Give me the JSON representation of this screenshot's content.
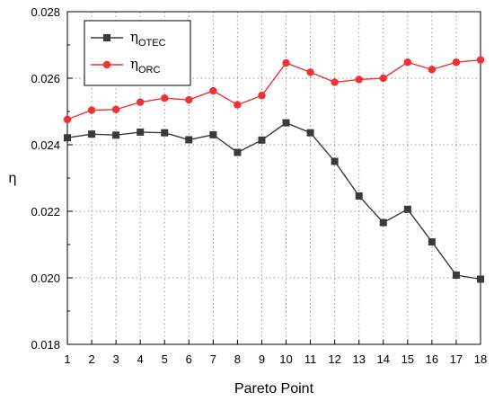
{
  "chart_data": {
    "type": "line",
    "xlabel": "Pareto Point",
    "ylabel": "η",
    "xlim": [
      1,
      18
    ],
    "ylim": [
      0.018,
      0.028
    ],
    "x": [
      1,
      2,
      3,
      4,
      5,
      6,
      7,
      8,
      9,
      10,
      11,
      12,
      13,
      14,
      15,
      16,
      17,
      18
    ],
    "x_ticks": [
      "1",
      "2",
      "3",
      "4",
      "5",
      "6",
      "7",
      "8",
      "9",
      "10",
      "11",
      "12",
      "13",
      "14",
      "15",
      "16",
      "17",
      "18"
    ],
    "y_ticks": [
      "0.018",
      "0.020",
      "0.022",
      "0.024",
      "0.026",
      "0.028"
    ],
    "grid": "dotted",
    "legend_position": "top-left",
    "series": [
      {
        "name": "η",
        "name_sub": "OTEC",
        "color": "#3a3a3a",
        "marker": "square",
        "values": [
          0.02421,
          0.02432,
          0.02429,
          0.02438,
          0.02436,
          0.02415,
          0.0243,
          0.02377,
          0.02414,
          0.02466,
          0.02436,
          0.0235,
          0.02246,
          0.02166,
          0.02206,
          0.02108,
          0.02008,
          0.01996
        ]
      },
      {
        "name": "η",
        "name_sub": "ORC",
        "color": "#f03232",
        "marker": "circle",
        "values": [
          0.02476,
          0.02504,
          0.02506,
          0.02528,
          0.0254,
          0.02535,
          0.02562,
          0.0252,
          0.02548,
          0.02646,
          0.02618,
          0.02588,
          0.02596,
          0.026,
          0.02648,
          0.02626,
          0.02648,
          0.02655
        ]
      }
    ]
  }
}
